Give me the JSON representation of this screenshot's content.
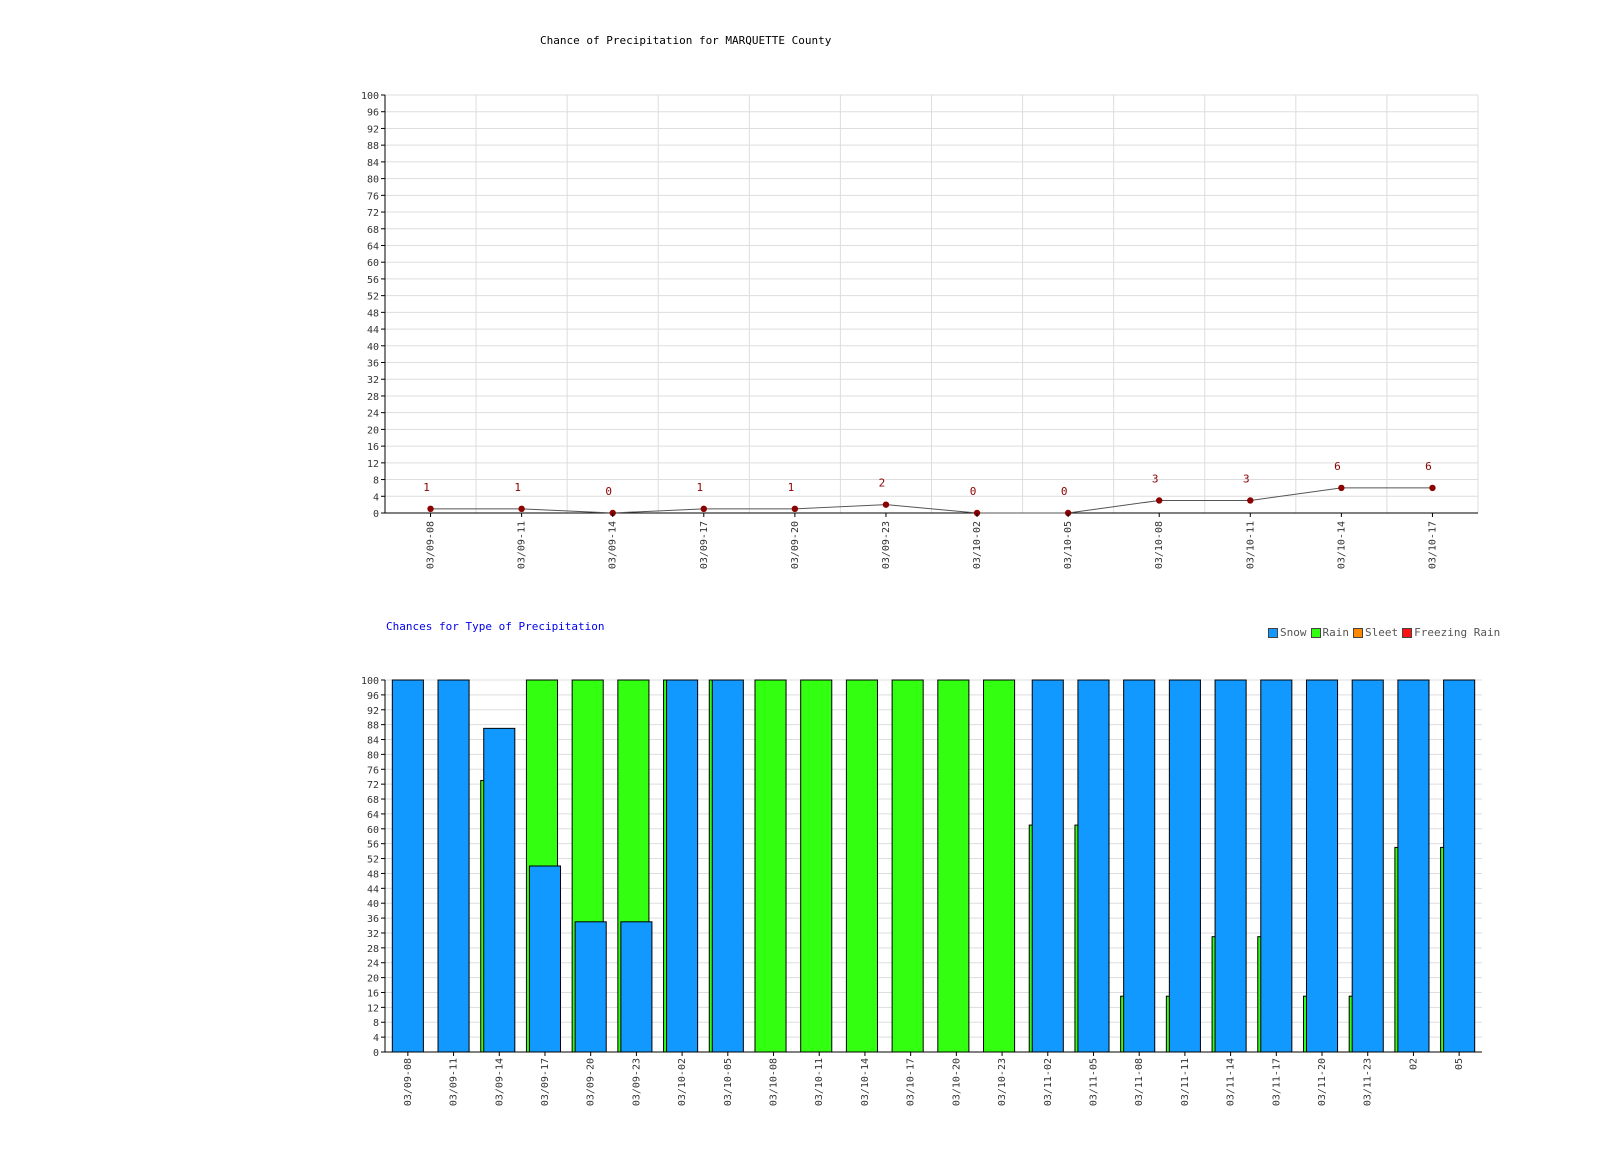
{
  "colors": {
    "grid": "#dddddd",
    "axis": "#000000",
    "tick_text": "#333333",
    "line": "#555555",
    "point": "#8b0000",
    "data_label": "#8b0000",
    "snow": "#1199ff",
    "rain": "#33ff11",
    "sleet": "#ff8800",
    "freezing_rain": "#ff1111"
  },
  "chart_data": [
    {
      "type": "line",
      "title": "Chance of Precipitation for MARQUETTE County",
      "xlabel": "",
      "ylabel": "",
      "ylim": [
        0,
        100
      ],
      "ytick_step": 4,
      "grid": true,
      "categories": [
        "03/09-08",
        "03/09-11",
        "03/09-14",
        "03/09-17",
        "03/09-20",
        "03/09-23",
        "03/10-02",
        "03/10-05",
        "03/10-08",
        "03/10-11",
        "03/10-14",
        "03/10-17"
      ],
      "values": [
        1,
        1,
        0,
        1,
        1,
        2,
        0,
        0,
        3,
        3,
        6,
        6
      ]
    },
    {
      "type": "bar",
      "title": "Chances for Type of Precipitation",
      "xlabel": "",
      "ylabel": "",
      "ylim": [
        0,
        100
      ],
      "ytick_step": 4,
      "grid": true,
      "legend_position": "top-right",
      "categories": [
        "03/09-08",
        "03/09-11",
        "03/09-14",
        "03/09-17",
        "03/09-20",
        "03/09-23",
        "03/10-02",
        "03/10-05",
        "03/10-08",
        "03/10-11",
        "03/10-14",
        "03/10-17",
        "03/10-20",
        "03/10-23",
        "03/11-02",
        "03/11-05",
        "03/11-08",
        "03/11-11",
        "03/11-14",
        "03/11-17",
        "03/11-20",
        "03/11-23",
        "02",
        "05"
      ],
      "series": [
        {
          "name": "Snow",
          "values": [
            100,
            100,
            87,
            50,
            35,
            35,
            100,
            100,
            0,
            0,
            0,
            0,
            0,
            0,
            100,
            100,
            100,
            100,
            100,
            100,
            100,
            100,
            100,
            100
          ]
        },
        {
          "name": "Rain",
          "values": [
            0,
            0,
            73,
            100,
            100,
            100,
            100,
            100,
            100,
            100,
            100,
            100,
            100,
            100,
            61,
            61,
            15,
            15,
            31,
            31,
            15,
            15,
            55,
            55
          ]
        },
        {
          "name": "Sleet",
          "values": [
            0,
            0,
            0,
            0,
            0,
            0,
            0,
            0,
            0,
            0,
            0,
            0,
            0,
            0,
            0,
            0,
            0,
            0,
            0,
            0,
            0,
            0,
            0,
            0
          ]
        },
        {
          "name": "Freezing Rain",
          "values": [
            0,
            0,
            0,
            0,
            0,
            0,
            0,
            0,
            0,
            0,
            0,
            0,
            0,
            0,
            0,
            0,
            0,
            0,
            0,
            0,
            0,
            0,
            0,
            0
          ]
        }
      ]
    }
  ]
}
